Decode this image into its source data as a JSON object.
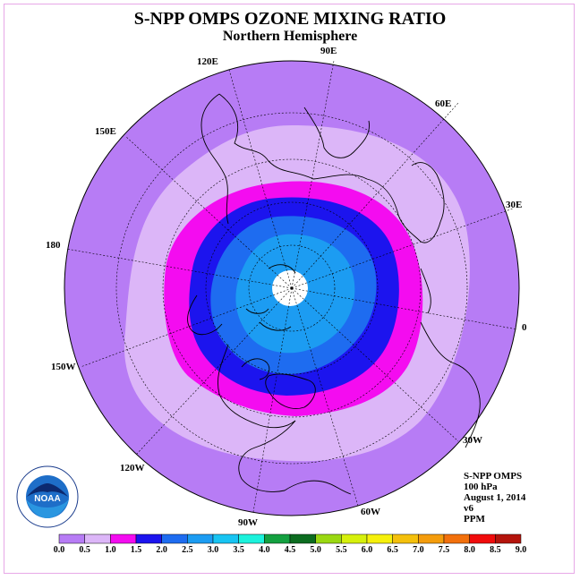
{
  "header": {
    "title": "S-NPP OMPS OZONE MIXING RATIO",
    "subtitle": "Northern Hemisphere"
  },
  "longitudes": [
    "90E",
    "60E",
    "30E",
    "0",
    "30W",
    "60W",
    "90W",
    "120W",
    "150W",
    "180",
    "150E",
    "120E"
  ],
  "info": {
    "instrument": "S-NPP OMPS",
    "level": "100 hPa",
    "date": "August 1, 2014",
    "version": "v6",
    "units": "PPM"
  },
  "logo": {
    "text": "NOAA",
    "ring_text": "NATIONAL OCEANIC AND ATMOSPHERIC ADMINISTRATION · U.S. DEPARTMENT OF COMMERCE"
  },
  "colorbar": {
    "labels": [
      "0.0",
      "0.5",
      "1.0",
      "1.5",
      "2.0",
      "2.5",
      "3.0",
      "3.5",
      "4.0",
      "4.5",
      "5.0",
      "5.5",
      "6.0",
      "6.5",
      "7.0",
      "7.5",
      "8.0",
      "8.5",
      "9.0"
    ],
    "colors": [
      "#b77cf5",
      "#dcb6f8",
      "#f40cf0",
      "#1c14ee",
      "#1e6cf0",
      "#1c9cf2",
      "#18c4f2",
      "#1cf2dc",
      "#14a040",
      "#0c6c20",
      "#9ad812",
      "#d6f00c",
      "#f6f00c",
      "#f4c00c",
      "#f49c0c",
      "#f2700c",
      "#f00c0c",
      "#b4140c",
      "#7c4c2c"
    ],
    "colors_count_note": ""
  },
  "legend_fields": {
    "bands": [
      {
        "range": "0.0-0.5",
        "color": "#b77cf5"
      },
      {
        "range": "0.5-1.0",
        "color": "#dcb6f8"
      },
      {
        "range": "1.0-1.5",
        "color": "#f40cf0"
      },
      {
        "range": "1.5-2.0",
        "color": "#1c14ee"
      },
      {
        "range": "2.0-2.5",
        "color": "#1e6cf0"
      },
      {
        "range": "2.5-3.0",
        "color": "#1c9cf2"
      }
    ]
  }
}
